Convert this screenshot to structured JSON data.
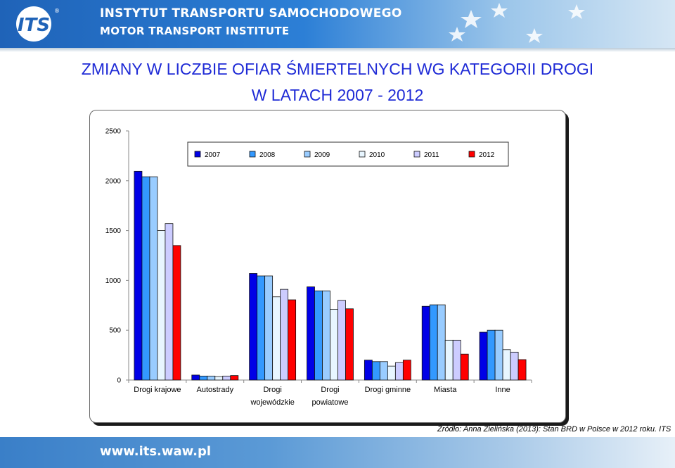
{
  "header": {
    "logo_text": "ITS",
    "institute_pl": "INSTYTUT TRANSPORTU SAMOCHODOWEGO",
    "institute_en": "MOTOR TRANSPORT INSTITUTE"
  },
  "title_line1": "ZMIANY  W  LICZBIE  OFIAR  ŚMIERTELNYCH  WG  KATEGORII  DROGI",
  "title_line2": "W  LATACH  2007 - 2012",
  "source": "Źródło:  Anna Zielińska (2013):  Stan BRD w Polsce w 2012 roku. ITS",
  "footer_url": "www.its.waw.pl",
  "colors": {
    "2007": "#0000e6",
    "2008": "#3399ff",
    "2009": "#99ccff",
    "2010": "#e8f6ff",
    "2011": "#ccccff",
    "2012": "#ff0000"
  },
  "chart_data": {
    "type": "bar",
    "categories": [
      "Drogi krajowe",
      "Autostrady",
      "Drogi wojewódzkie",
      "Drogi powiatowe",
      "Drogi gminne",
      "Miasta",
      "Inne"
    ],
    "category_lines": [
      [
        "Drogi krajowe"
      ],
      [
        "Autostrady"
      ],
      [
        "Drogi",
        "wojewódzkie"
      ],
      [
        "Drogi",
        "powiatowe"
      ],
      [
        "Drogi gminne"
      ],
      [
        "Miasta"
      ],
      [
        "Inne"
      ]
    ],
    "series": [
      {
        "name": "2007",
        "values": [
          2095,
          50,
          1070,
          935,
          200,
          740,
          480
        ]
      },
      {
        "name": "2008",
        "values": [
          2040,
          40,
          1045,
          895,
          185,
          755,
          500
        ]
      },
      {
        "name": "2009",
        "values": [
          2040,
          40,
          1045,
          895,
          185,
          755,
          500
        ]
      },
      {
        "name": "2010",
        "values": [
          1500,
          35,
          835,
          710,
          140,
          400,
          305
        ]
      },
      {
        "name": "2011",
        "values": [
          1570,
          40,
          910,
          800,
          175,
          400,
          280
        ]
      },
      {
        "name": "2012",
        "values": [
          1350,
          45,
          805,
          715,
          200,
          260,
          205
        ]
      }
    ],
    "yticks": [
      0,
      500,
      1000,
      1500,
      2000,
      2500
    ],
    "ylim": [
      0,
      2500
    ],
    "legend_position": "top",
    "grid": false
  }
}
